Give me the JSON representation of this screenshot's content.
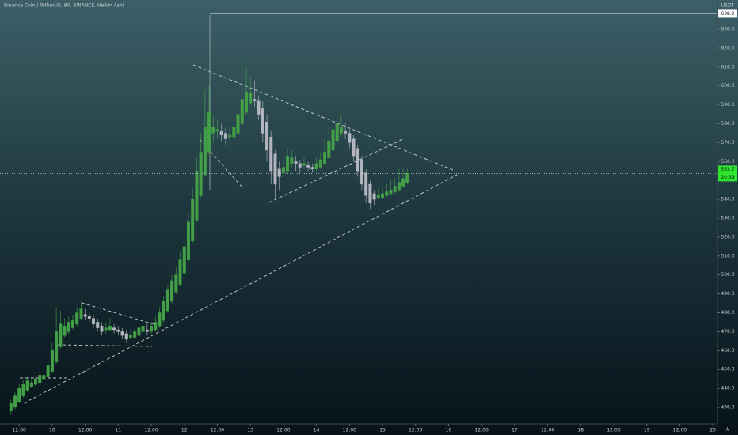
{
  "chart_data": {
    "type": "candlestick",
    "title": "Binance Coin / TetherUS, 90, BINANCE, Heikin Ashi",
    "currency": "USDT",
    "auto_button": "A",
    "countdown": "20:39",
    "price_line": 638.2,
    "up_color": "#43a047",
    "down_color": "#b2b5be",
    "xlim": [
      9.21,
      20.07
    ],
    "ylim": [
      421.2,
      645.5
    ],
    "xticks": [
      {
        "value": 9.5,
        "label": "12:00"
      },
      10,
      {
        "value": 10.5,
        "label": "12:00"
      },
      11,
      {
        "value": 11.5,
        "label": "12:00"
      },
      12,
      {
        "value": 12.5,
        "label": "12:00"
      },
      13,
      {
        "value": 13.5,
        "label": "12:00"
      },
      14,
      {
        "value": 14.5,
        "label": "12:00"
      },
      15,
      {
        "value": 15.5,
        "label": "12:00"
      },
      16,
      {
        "value": 16.5,
        "label": "12:00"
      },
      17,
      {
        "value": 17.5,
        "label": "12:00"
      },
      18,
      {
        "value": 18.5,
        "label": "12:00"
      },
      19,
      {
        "value": 19.5,
        "label": "12:00"
      },
      20
    ],
    "yticks": [
      {
        "value": 430,
        "label": "430.0"
      },
      {
        "value": 440,
        "label": "440.0"
      },
      {
        "value": 450,
        "label": "450.0"
      },
      {
        "value": 460,
        "label": "460.0"
      },
      {
        "value": 470,
        "label": "470.0"
      },
      {
        "value": 480,
        "label": "480.0"
      },
      {
        "value": 490,
        "label": "490.0"
      },
      {
        "value": 500,
        "label": "500.0"
      },
      {
        "value": 510,
        "label": "510.0"
      },
      {
        "value": 520,
        "label": "520.0"
      },
      {
        "value": 530,
        "label": "530.0"
      },
      {
        "value": 540,
        "label": "540.0"
      },
      {
        "value": 550,
        "label": "550.0"
      },
      {
        "value": 560,
        "label": "560.0"
      },
      {
        "value": 570,
        "label": "570.0"
      },
      {
        "value": 580,
        "label": "580.0"
      },
      {
        "value": 590,
        "label": "590.0"
      },
      {
        "value": 600,
        "label": "600.0"
      },
      {
        "value": 610,
        "label": "610.0"
      },
      {
        "value": 620,
        "label": "620.0"
      },
      {
        "value": 630,
        "label": "630.0"
      }
    ],
    "x": [
      9.375,
      9.4375,
      9.5,
      9.5625,
      9.625,
      9.6875,
      9.75,
      9.8125,
      9.875,
      9.9375,
      10,
      10.0625,
      10.125,
      10.1875,
      10.25,
      10.3125,
      10.375,
      10.4375,
      10.5,
      10.5625,
      10.625,
      10.6875,
      10.75,
      10.8125,
      10.875,
      10.9375,
      11,
      11.0625,
      11.125,
      11.1875,
      11.25,
      11.3125,
      11.375,
      11.4375,
      11.5,
      11.5625,
      11.625,
      11.6875,
      11.75,
      11.8125,
      11.875,
      11.9375,
      12,
      12.0625,
      12.125,
      12.1875,
      12.25,
      12.3125,
      12.375,
      12.4375,
      12.5,
      12.5625,
      12.625,
      12.6875,
      12.75,
      12.8125,
      12.875,
      12.9375,
      13,
      13.0625,
      13.125,
      13.1875,
      13.25,
      13.3125,
      13.375,
      13.4375,
      13.5,
      13.5625,
      13.625,
      13.6875,
      13.75,
      13.8125,
      13.875,
      13.9375,
      14,
      14.0625,
      14.125,
      14.1875,
      14.25,
      14.3125,
      14.375,
      14.4375,
      14.5,
      14.5625,
      14.625,
      14.6875,
      14.75,
      14.8125,
      14.875,
      14.9375,
      15,
      15.0625,
      15.125,
      15.1875,
      15.25,
      15.3125,
      15.375
    ],
    "open": [
      428,
      430,
      433,
      436,
      439,
      441,
      442,
      443,
      445,
      446,
      449,
      454,
      462,
      468,
      470,
      472,
      474,
      477,
      479,
      478,
      477,
      475,
      473,
      471,
      471,
      472,
      471,
      470,
      469,
      467,
      467,
      468,
      470,
      471,
      470,
      471,
      473,
      476,
      481,
      486,
      491,
      495,
      501,
      508,
      518,
      529,
      542,
      553,
      565,
      575,
      576,
      576,
      575,
      573,
      573,
      575,
      580,
      586,
      591,
      593,
      592,
      588,
      581,
      573,
      564,
      556,
      554,
      555,
      559,
      560,
      559,
      558,
      558,
      557,
      556,
      557,
      559,
      562,
      566,
      571,
      575,
      576,
      575,
      572,
      567,
      561,
      554,
      548,
      543,
      541,
      541,
      542,
      543,
      544,
      545,
      547,
      549
    ],
    "high": [
      434,
      438,
      442,
      444,
      446,
      446,
      447,
      449,
      449,
      455,
      464,
      483,
      481,
      477,
      478,
      479,
      483,
      486,
      482,
      480,
      479,
      477,
      475,
      475,
      477,
      474,
      473,
      472,
      471,
      471,
      473,
      474,
      476,
      474,
      475,
      478,
      483,
      489,
      495,
      500,
      504,
      512,
      520,
      533,
      546,
      562,
      575,
      598,
      600,
      585,
      582,
      580,
      578,
      579,
      585,
      608,
      615,
      610,
      605,
      603,
      595,
      592,
      585,
      576,
      566,
      560,
      562,
      567,
      566,
      563,
      561,
      562,
      560,
      559,
      562,
      565,
      572,
      578,
      583,
      586,
      585,
      580,
      577,
      574,
      569,
      563,
      556,
      550,
      545,
      546,
      547,
      548,
      550,
      551,
      556,
      556,
      556
    ],
    "low": [
      426,
      429,
      432,
      435,
      438,
      440,
      441,
      442,
      444,
      445,
      448,
      453,
      461,
      467,
      469,
      471,
      473,
      476,
      476,
      475,
      472,
      470,
      468,
      469,
      470,
      469,
      468,
      466,
      464,
      466,
      466,
      467,
      469,
      468,
      469,
      470,
      472,
      475,
      480,
      485,
      490,
      494,
      500,
      507,
      517,
      528,
      541,
      552,
      564,
      570,
      572,
      571,
      569,
      571,
      572,
      574,
      579,
      585,
      590,
      589,
      582,
      570,
      560,
      548,
      540,
      545,
      552,
      554,
      557,
      555,
      554,
      556,
      555,
      554,
      555,
      556,
      558,
      561,
      565,
      570,
      573,
      572,
      567,
      560,
      552,
      545,
      538,
      535,
      537,
      540,
      540,
      541,
      542,
      543,
      544,
      546,
      548
    ],
    "close": [
      432,
      436,
      440,
      442,
      444,
      443,
      445,
      447,
      447,
      452,
      460,
      470,
      474,
      473,
      475,
      476,
      480,
      482,
      478,
      477,
      474,
      472,
      470,
      472,
      473,
      471,
      470,
      468,
      466,
      468,
      470,
      472,
      473,
      470,
      473,
      475,
      480,
      486,
      492,
      497,
      500,
      508,
      515,
      528,
      540,
      555,
      565,
      578,
      586,
      578,
      577,
      574,
      572,
      574,
      578,
      585,
      593,
      597,
      596,
      592,
      585,
      575,
      566,
      555,
      548,
      552,
      557,
      563,
      562,
      559,
      557,
      559,
      557,
      556,
      559,
      561,
      565,
      571,
      577,
      580,
      578,
      575,
      570,
      563,
      555,
      548,
      542,
      538,
      540,
      542,
      543,
      544,
      545,
      547,
      549,
      551,
      553.7
    ]
  }
}
